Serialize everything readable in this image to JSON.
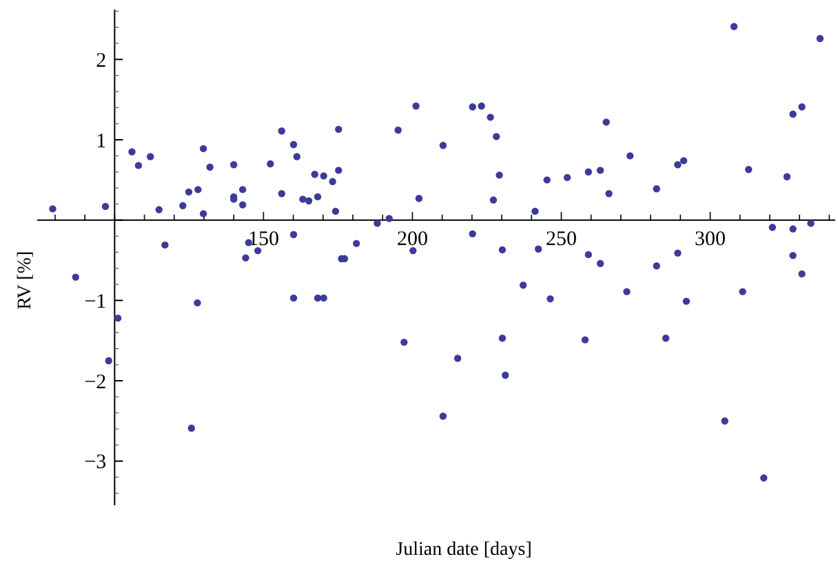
{
  "chart_data": {
    "type": "scatter",
    "xlabel": "Julian date [days]",
    "ylabel": "RV [%]",
    "marker": "circle",
    "xlim": [
      74,
      342
    ],
    "ylim": [
      -3.55,
      2.62
    ],
    "xticks": [
      {
        "value": 80,
        "label": null
      },
      {
        "value": 90,
        "label": null
      },
      {
        "value": 100,
        "label": null
      },
      {
        "value": 110,
        "label": null
      },
      {
        "value": 120,
        "label": null
      },
      {
        "value": 130,
        "label": null
      },
      {
        "value": 140,
        "label": null
      },
      150,
      {
        "value": 160,
        "label": null
      },
      {
        "value": 170,
        "label": null
      },
      {
        "value": 180,
        "label": null
      },
      {
        "value": 190,
        "label": null
      },
      200,
      {
        "value": 210,
        "label": null
      },
      {
        "value": 220,
        "label": null
      },
      {
        "value": 230,
        "label": null
      },
      {
        "value": 240,
        "label": null
      },
      250,
      {
        "value": 260,
        "label": null
      },
      {
        "value": 270,
        "label": null
      },
      {
        "value": 280,
        "label": null
      },
      {
        "value": 290,
        "label": null
      },
      300,
      {
        "value": 310,
        "label": null
      },
      {
        "value": 320,
        "label": null
      },
      {
        "value": 330,
        "label": null
      },
      {
        "value": 340,
        "label": null
      }
    ],
    "yticks": [
      -3,
      -2,
      -1,
      {
        "value": 0,
        "label": null
      },
      1,
      2
    ],
    "series": [
      {
        "color": "#3b3b9a",
        "x": [
          79.2,
          86.9,
          96.9,
          98.0,
          101.1,
          105.8,
          108.0,
          112.0,
          114.9,
          116.9,
          122.9,
          124.9,
          125.8,
          127.8,
          128.0,
          129.8,
          129.8,
          132.0,
          140.0,
          140.0,
          140.0,
          143.0,
          143.0,
          144.0,
          145.0,
          148.1,
          152.3,
          156.1,
          156.1,
          160.1,
          160.1,
          160.1,
          161.2,
          163.2,
          165.2,
          167.2,
          168.2,
          168.2,
          170.2,
          170.2,
          173.2,
          174.2,
          175.2,
          175.2,
          176.2,
          177.2,
          181.2,
          188.2,
          192.2,
          195.2,
          197.2,
          200.2,
          201.2,
          202.2,
          210.3,
          210.3,
          215.2,
          220.2,
          220.2,
          223.2,
          226.2,
          227.2,
          228.2,
          229.2,
          230.2,
          230.2,
          231.2,
          237.2,
          241.2,
          242.3,
          245.2,
          246.3,
          252.0,
          259.1,
          259.1,
          258.0,
          263.1,
          263.1,
          265.1,
          266.0,
          272.0,
          273.1,
          282.0,
          282.0,
          285.1,
          289.1,
          289.1,
          291.1,
          292.0,
          304.9,
          308.0,
          310.9,
          312.9,
          318.0,
          320.9,
          325.8,
          327.8,
          327.8,
          327.8,
          330.8,
          330.8,
          333.8,
          336.9
        ],
        "values": [
          0.14,
          -0.71,
          0.17,
          -1.75,
          -1.22,
          0.85,
          0.68,
          0.79,
          0.13,
          -0.31,
          0.18,
          0.35,
          -2.59,
          -1.03,
          0.38,
          0.89,
          0.08,
          0.66,
          0.69,
          0.29,
          0.26,
          0.38,
          0.19,
          -0.47,
          -0.28,
          -0.38,
          0.7,
          1.11,
          0.33,
          0.94,
          -0.18,
          -0.97,
          0.79,
          0.26,
          0.24,
          0.57,
          0.29,
          -0.97,
          0.55,
          -0.97,
          0.48,
          0.11,
          1.13,
          0.62,
          -0.48,
          -0.48,
          -0.29,
          -0.04,
          0.02,
          1.12,
          -1.52,
          -0.38,
          1.42,
          0.27,
          0.93,
          -2.44,
          -1.72,
          1.41,
          -0.17,
          1.42,
          1.28,
          0.25,
          1.04,
          0.56,
          -0.37,
          -1.47,
          -1.93,
          -0.81,
          0.11,
          -0.36,
          0.5,
          -0.98,
          0.53,
          0.6,
          -0.43,
          -1.49,
          0.62,
          -0.54,
          1.22,
          0.33,
          -0.89,
          0.8,
          0.39,
          -0.57,
          -1.47,
          0.69,
          -0.41,
          0.74,
          -1.01,
          -2.5,
          2.41,
          -0.89,
          0.63,
          -3.21,
          -0.09,
          0.54,
          1.32,
          -0.11,
          -0.44,
          1.41,
          -0.67,
          -0.04,
          2.26
        ]
      }
    ]
  }
}
